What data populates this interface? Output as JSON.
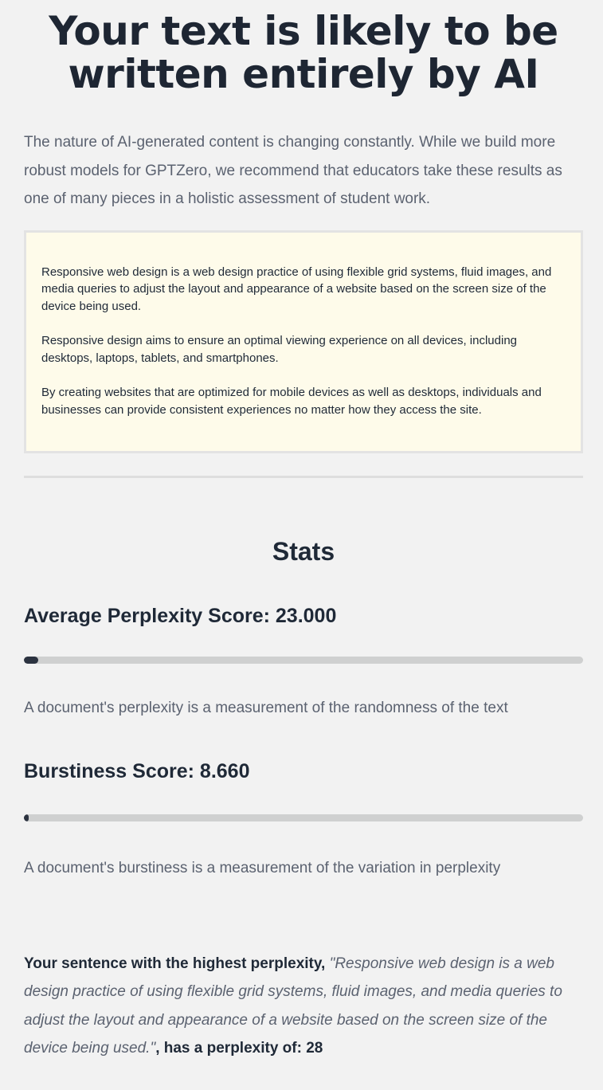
{
  "result": {
    "headline": "Your text is likely to be written entirely by AI",
    "intro": "The nature of AI-generated content is changing constantly. While we build more robust models for GPTZero, we recommend that educators take these results as one of many pieces in a holistic assessment of student work."
  },
  "input_text": {
    "paragraphs": [
      "Responsive web design is a web design practice of using flexible grid systems, fluid images, and media queries to adjust the layout and appearance of a website based on the screen size of the device being used.",
      "Responsive design aims to ensure an optimal viewing experience on all devices, including desktops, laptops, tablets, and smartphones.",
      "By creating websites that are optimized for mobile devices as well as desktops, individuals and businesses can provide consistent experiences no matter how they access the site."
    ]
  },
  "stats": {
    "title": "Stats",
    "perplexity": {
      "label": "Average Perplexity Score: 23.000",
      "bar_fill_fraction": 0.025,
      "description": "A document's perplexity is a measurement of the randomness of the text"
    },
    "burstiness": {
      "label": "Burstiness Score: 8.660",
      "bar_fill_fraction": 0.008,
      "description": "A document's burstiness is a measurement of the variation in perplexity"
    }
  },
  "highest_perplexity": {
    "prefix": "Your sentence with the highest perplexity,",
    "sentence": "\"Responsive web design is a web design practice of using flexible grid systems, fluid images, and media queries to adjust the layout and appearance of a website based on the screen size of the device being used.\"",
    "suffix": ", has a perplexity of: 28"
  },
  "colors": {
    "page_background": "#f2f2f2",
    "text_box_background": "#fefbea",
    "bar_track": "#cfd0d0",
    "bar_fill": "#2c3340"
  }
}
